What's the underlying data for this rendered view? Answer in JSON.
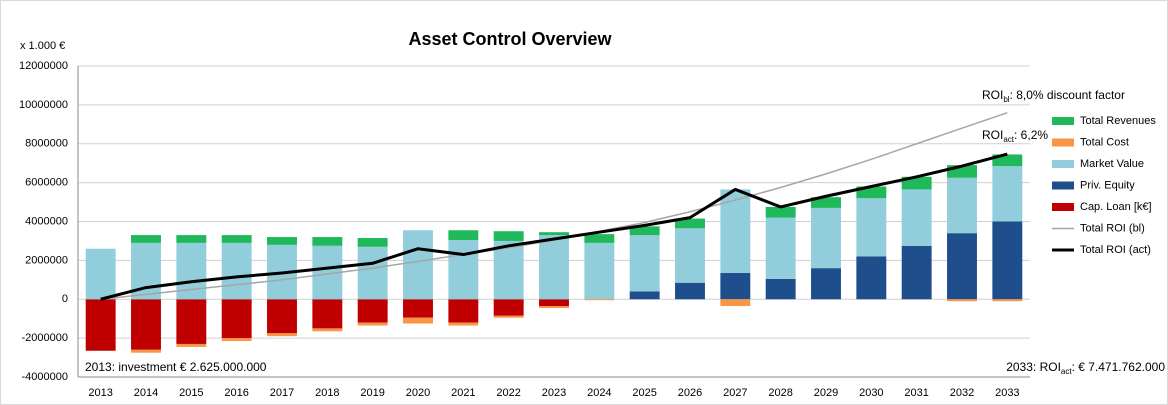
{
  "chart_data": {
    "type": "bar",
    "title": "Asset Control Overview",
    "y_unit_label": "x 1.000 €",
    "categories": [
      "2013",
      "2014",
      "2015",
      "2016",
      "2017",
      "2018",
      "2019",
      "2020",
      "2021",
      "2022",
      "2023",
      "2024",
      "2025",
      "2026",
      "2027",
      "2028",
      "2029",
      "2030",
      "2031",
      "2032",
      "2033"
    ],
    "ylim": [
      -4000000,
      12000000
    ],
    "yticks": [
      -4000000,
      -2000000,
      0,
      2000000,
      4000000,
      6000000,
      8000000,
      10000000,
      12000000
    ],
    "grid": true,
    "legend": "right",
    "series": [
      {
        "name": "Total Revenues",
        "kind": "bar",
        "color": "#1fb85a",
        "values": [
          0,
          400000,
          400000,
          400000,
          400000,
          450000,
          450000,
          0,
          500000,
          500000,
          150000,
          450000,
          450000,
          500000,
          0,
          550000,
          550000,
          600000,
          650000,
          650000,
          600000
        ]
      },
      {
        "name": "Total Cost",
        "kind": "bar",
        "color": "#f79646",
        "values": [
          0,
          -150000,
          -150000,
          -150000,
          -150000,
          -150000,
          -150000,
          -300000,
          -150000,
          -100000,
          -100000,
          -50000,
          0,
          0,
          -350000,
          0,
          0,
          0,
          0,
          -100000,
          -100000
        ]
      },
      {
        "name": "Market Value",
        "kind": "bar",
        "color": "#92cddc",
        "values": [
          2600000,
          2900000,
          2900000,
          2900000,
          2800000,
          2750000,
          2700000,
          3550000,
          3050000,
          3000000,
          3300000,
          2900000,
          2900000,
          2800000,
          4300000,
          3150000,
          3100000,
          3000000,
          2900000,
          2850000,
          2850000
        ]
      },
      {
        "name": "Priv. Equity",
        "kind": "bar",
        "color": "#1f4e8c",
        "values": [
          0,
          0,
          0,
          0,
          0,
          0,
          0,
          0,
          0,
          0,
          0,
          0,
          400000,
          850000,
          1350000,
          1050000,
          1600000,
          2200000,
          2750000,
          3400000,
          4000000
        ]
      },
      {
        "name": "Cap. Loan [k€]",
        "kind": "bar",
        "color": "#c00000",
        "values": [
          -2650000,
          -2600000,
          -2300000,
          -2000000,
          -1750000,
          -1500000,
          -1200000,
          -950000,
          -1200000,
          -850000,
          -350000,
          0,
          0,
          0,
          0,
          0,
          0,
          0,
          0,
          0,
          0
        ]
      },
      {
        "name": "Total ROI (bl)",
        "kind": "line",
        "color": "#a6a6a6",
        "values": [
          0,
          250000,
          500000,
          750000,
          1000000,
          1300000,
          1600000,
          1950000,
          2300000,
          2650000,
          3050000,
          3500000,
          3950000,
          4500000,
          5100000,
          5750000,
          6450000,
          7200000,
          8000000,
          8800000,
          9600000
        ]
      },
      {
        "name": "Total ROI (act)",
        "kind": "line",
        "color": "#000000",
        "values": [
          0,
          600000,
          900000,
          1150000,
          1350000,
          1600000,
          1850000,
          2600000,
          2300000,
          2750000,
          3100000,
          3450000,
          3800000,
          4200000,
          5650000,
          4750000,
          5300000,
          5800000,
          6300000,
          6850000,
          7470000
        ]
      }
    ],
    "annotations": [
      {
        "text": "ROI",
        "sub": "bl",
        "rest": ": 8,0% discount factor"
      },
      {
        "text": "ROI",
        "sub": "act",
        "rest": ": 6,2%"
      },
      {
        "text": "2013: investment € 2.625.000.000"
      },
      {
        "text": "2033: ROI",
        "sub": "act",
        "rest": ": € 7.471.762.000"
      }
    ]
  }
}
